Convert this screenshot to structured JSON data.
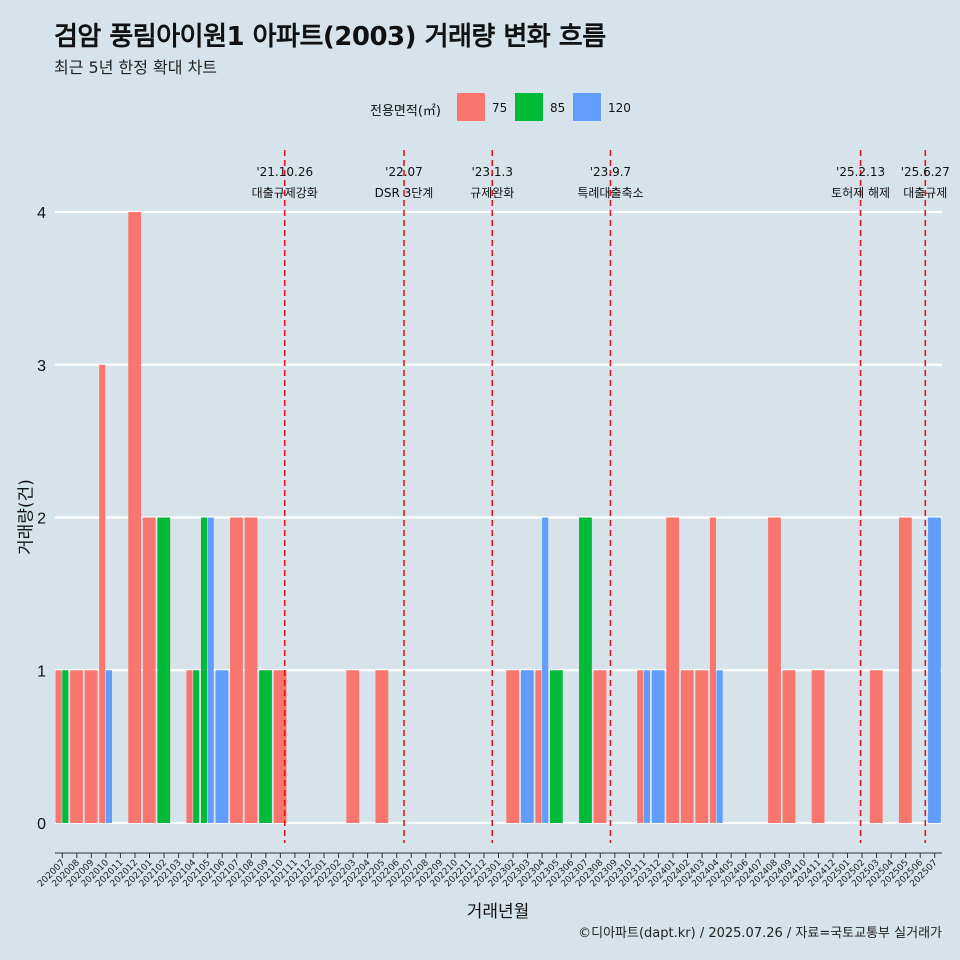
{
  "header": {
    "title": "검암 풍림아이원1 아파트(2003) 거래량 변화 흐름",
    "subtitle": "최근 5년 한정 확대 차트"
  },
  "legend": {
    "title": "전용면적(㎡)",
    "items": [
      {
        "label": "75",
        "color": "#F8766D"
      },
      {
        "label": "85",
        "color": "#00BA38"
      },
      {
        "label": "120",
        "color": "#619CFF"
      }
    ]
  },
  "caption": "©디아파트(dapt.kr) / 2025.07.26 / 자료=국토교통부 실거래가",
  "chart_data": {
    "type": "bar",
    "title": "검암 풍림아이원1 아파트(2003) 거래량 변화 흐름",
    "subtitle": "최근 5년 한정 확대 차트",
    "xlabel": "거래년월",
    "ylabel": "거래량(건)",
    "ylim": [
      0,
      4
    ],
    "yticks": [
      0,
      1,
      2,
      3,
      4
    ],
    "grid": "horizontal",
    "legend_position": "top",
    "categories": [
      "202007",
      "202008",
      "202009",
      "202010",
      "202011",
      "202012",
      "202101",
      "202102",
      "202103",
      "202104",
      "202105",
      "202106",
      "202107",
      "202108",
      "202109",
      "202110",
      "202111",
      "202112",
      "202201",
      "202202",
      "202203",
      "202204",
      "202205",
      "202206",
      "202207",
      "202208",
      "202209",
      "202210",
      "202211",
      "202212",
      "202301",
      "202302",
      "202303",
      "202304",
      "202305",
      "202306",
      "202307",
      "202308",
      "202309",
      "202310",
      "202311",
      "202312",
      "202401",
      "202402",
      "202403",
      "202404",
      "202405",
      "202406",
      "202407",
      "202408",
      "202409",
      "202410",
      "202411",
      "202412",
      "202501",
      "202502",
      "202503",
      "202504",
      "202505",
      "202506",
      "202507"
    ],
    "bars": [
      {
        "month": "202007",
        "area": "75",
        "value": 1
      },
      {
        "month": "202007",
        "area": "85",
        "value": 1
      },
      {
        "month": "202008",
        "area": "75",
        "value": 1
      },
      {
        "month": "202009",
        "area": "75",
        "value": 1
      },
      {
        "month": "202010",
        "area": "75",
        "value": 3
      },
      {
        "month": "202010",
        "area": "120",
        "value": 1
      },
      {
        "month": "202012",
        "area": "75",
        "value": 4
      },
      {
        "month": "202101",
        "area": "75",
        "value": 2
      },
      {
        "month": "202102",
        "area": "85",
        "value": 2
      },
      {
        "month": "202104",
        "area": "75",
        "value": 1
      },
      {
        "month": "202104",
        "area": "85",
        "value": 1
      },
      {
        "month": "202105",
        "area": "85",
        "value": 2
      },
      {
        "month": "202105",
        "area": "120",
        "value": 2
      },
      {
        "month": "202106",
        "area": "120",
        "value": 1
      },
      {
        "month": "202107",
        "area": "75",
        "value": 2
      },
      {
        "month": "202108",
        "area": "75",
        "value": 2
      },
      {
        "month": "202109",
        "area": "85",
        "value": 1
      },
      {
        "month": "202110",
        "area": "75",
        "value": 1
      },
      {
        "month": "202203",
        "area": "75",
        "value": 1
      },
      {
        "month": "202205",
        "area": "75",
        "value": 1
      },
      {
        "month": "202302",
        "area": "75",
        "value": 1
      },
      {
        "month": "202303",
        "area": "120",
        "value": 1
      },
      {
        "month": "202304",
        "area": "75",
        "value": 1
      },
      {
        "month": "202304",
        "area": "120",
        "value": 2
      },
      {
        "month": "202305",
        "area": "85",
        "value": 1
      },
      {
        "month": "202307",
        "area": "85",
        "value": 2
      },
      {
        "month": "202308",
        "area": "75",
        "value": 1
      },
      {
        "month": "202311",
        "area": "75",
        "value": 1
      },
      {
        "month": "202311",
        "area": "120",
        "value": 1
      },
      {
        "month": "202312",
        "area": "120",
        "value": 1
      },
      {
        "month": "202401",
        "area": "75",
        "value": 2
      },
      {
        "month": "202402",
        "area": "75",
        "value": 1
      },
      {
        "month": "202403",
        "area": "75",
        "value": 1
      },
      {
        "month": "202404",
        "area": "75",
        "value": 2
      },
      {
        "month": "202404",
        "area": "120",
        "value": 1
      },
      {
        "month": "202408",
        "area": "75",
        "value": 2
      },
      {
        "month": "202409",
        "area": "75",
        "value": 1
      },
      {
        "month": "202411",
        "area": "75",
        "value": 1
      },
      {
        "month": "202503",
        "area": "75",
        "value": 1
      },
      {
        "month": "202505",
        "area": "75",
        "value": 2
      },
      {
        "month": "202507",
        "area": "120",
        "value": 2
      }
    ],
    "annotations": [
      {
        "date": "'21.10.26",
        "label": "대출규제강화",
        "month": "202110",
        "offset": 0.8
      },
      {
        "date": "'22.07",
        "label": "DSR 3단계",
        "month": "202207",
        "offset": 0.0
      },
      {
        "date": "'23.1.3",
        "label": "규제완화",
        "month": "202301",
        "offset": 0.07
      },
      {
        "date": "'23.9.7",
        "label": "특례대출축소",
        "month": "202309",
        "offset": 0.2
      },
      {
        "date": "'25.2.13",
        "label": "토허제 해제",
        "month": "202502",
        "offset": 0.4
      },
      {
        "date": "'25.6.27",
        "label": "대출규제",
        "month": "202506",
        "offset": 0.85
      }
    ]
  }
}
